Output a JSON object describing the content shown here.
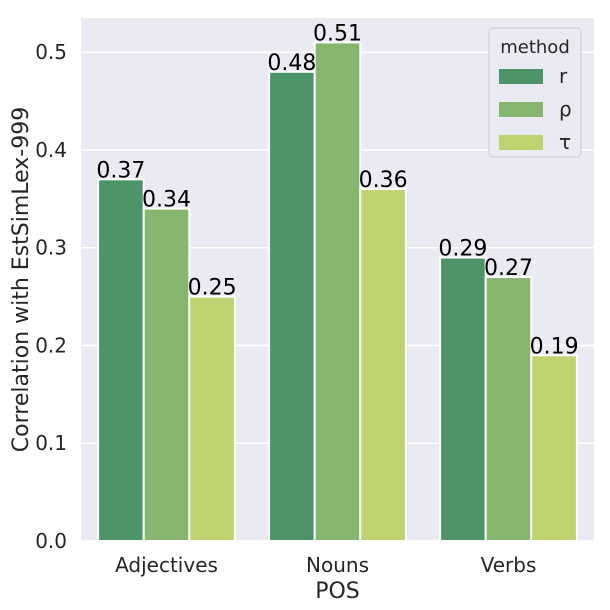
{
  "chart_data": {
    "type": "bar",
    "xlabel": "POS",
    "ylabel": "Correlation with EstSimLex-999",
    "categories": [
      "Adjectives",
      "Nouns",
      "Verbs"
    ],
    "series": [
      {
        "name": "r",
        "values": [
          0.37,
          0.48,
          0.29
        ],
        "labels": [
          "0.37",
          "0.48",
          "0.29"
        ],
        "color": "#4d9568"
      },
      {
        "name": "ρ",
        "values": [
          0.34,
          0.51,
          0.27
        ],
        "labels": [
          "0.34",
          "0.51",
          "0.27"
        ],
        "color": "#85b56e"
      },
      {
        "name": "τ",
        "values": [
          0.25,
          0.36,
          0.19
        ],
        "labels": [
          "0.25",
          "0.36",
          "0.19"
        ],
        "color": "#bed36f"
      }
    ],
    "ylim": [
      0,
      0.535
    ],
    "yticks": [
      "0.0",
      "0.1",
      "0.2",
      "0.3",
      "0.4",
      "0.5"
    ],
    "ytick_values": [
      0,
      0.1,
      0.2,
      0.3,
      0.4,
      0.5
    ],
    "grid": true,
    "background": "#eaeaf2",
    "legend": {
      "title": "method",
      "position": "top-right"
    }
  }
}
